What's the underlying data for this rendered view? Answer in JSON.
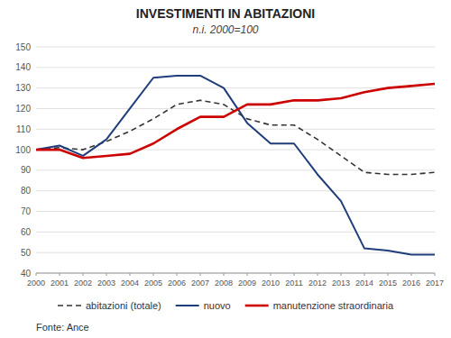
{
  "chart_data": {
    "type": "line",
    "title": "INVESTIMENTI IN ABITAZIONI",
    "subtitle": "n.i. 2000=100",
    "annotations": [
      "Fonte: Ance"
    ],
    "x": [
      2000,
      2001,
      2002,
      2003,
      2004,
      2005,
      2006,
      2007,
      2008,
      2009,
      2010,
      2011,
      2012,
      2013,
      2014,
      2015,
      2016,
      2017
    ],
    "series": [
      {
        "name": "abitazioni (totale)",
        "color": "#333333",
        "line_style": "dashed",
        "values": [
          100,
          101,
          100,
          104,
          109,
          115,
          122,
          124,
          122,
          115,
          112,
          112,
          105,
          97,
          89,
          88,
          88,
          89
        ]
      },
      {
        "name": "nuovo",
        "color": "#1f3d7a",
        "line_style": "solid",
        "values": [
          100,
          102,
          97,
          105,
          120,
          135,
          136,
          136,
          130,
          113,
          103,
          103,
          88,
          75,
          52,
          51,
          49,
          49
        ]
      },
      {
        "name": "manutenzione straordinaria",
        "color": "#cc0000",
        "line_style": "solid",
        "values": [
          100,
          100,
          96,
          97,
          98,
          103,
          110,
          116,
          116,
          122,
          122,
          124,
          124,
          125,
          128,
          130,
          131,
          132
        ]
      }
    ],
    "xlim": [
      2000,
      2017
    ],
    "xticks": [
      2000,
      2001,
      2002,
      2003,
      2004,
      2005,
      2006,
      2007,
      2008,
      2009,
      2010,
      2011,
      2012,
      2013,
      2014,
      2015,
      2016,
      2017
    ],
    "ylim": [
      40,
      150
    ],
    "yticks": [
      40,
      50,
      60,
      70,
      80,
      90,
      100,
      110,
      120,
      130,
      140,
      150
    ],
    "grid": "y",
    "legend": "bottom"
  }
}
